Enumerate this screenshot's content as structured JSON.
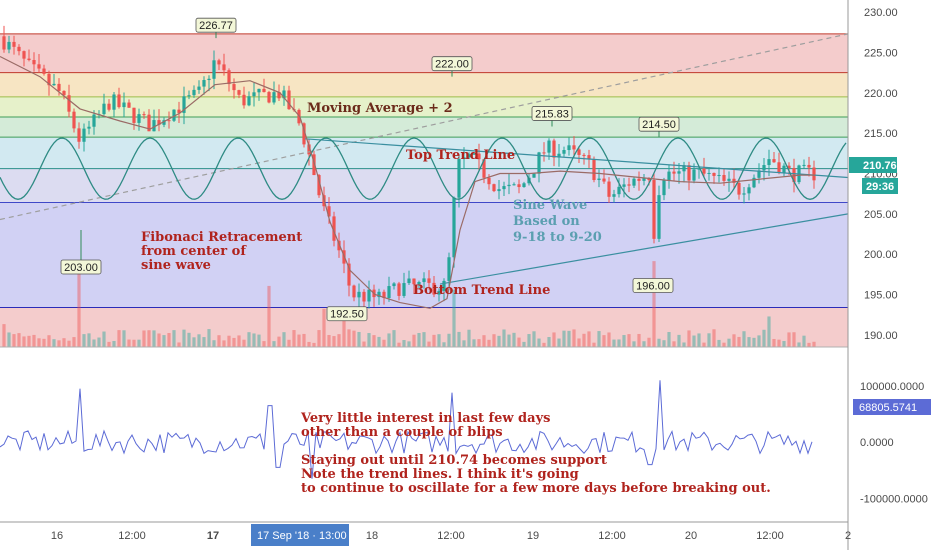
{
  "chart_data": [
    {
      "type": "candlestick",
      "y_ticks": [
        "230.00",
        "225.00",
        "220.00",
        "215.00",
        "210.00",
        "205.00",
        "200.00",
        "195.00",
        "190.00"
      ],
      "ylim": [
        188.5,
        231.5
      ],
      "x_ticks": [
        "16",
        "12:00",
        "17",
        "17 Sep '18 · 13:00",
        "18",
        "12:00",
        "19",
        "12:00",
        "20",
        "12:00",
        "2"
      ],
      "crosshair_time_label": "17 Sep '18 · 13:00",
      "last_price": "210.76",
      "countdown": "29:36",
      "fib_levels": [
        227.3,
        222.5,
        219.5,
        217.0,
        214.5,
        210.6,
        206.4,
        193.4
      ],
      "fib_zone_colors": [
        "#f3c7c7",
        "#f6e2bd",
        "#e3f0c4",
        "#cfe9d4",
        "#cde7f0",
        "#d8d8ef",
        "#ccccf3",
        "#f3c7c7"
      ],
      "price_callouts": [
        {
          "label": "226.77",
          "value": 226.77
        },
        {
          "label": "222.00",
          "value": 222.0
        },
        {
          "label": "215.83",
          "value": 215.83
        },
        {
          "label": "214.50",
          "value": 214.5
        },
        {
          "label": "203.00",
          "value": 203.0
        },
        {
          "label": "192.50",
          "value": 192.5
        },
        {
          "label": "196.00",
          "value": 196.0
        }
      ],
      "annotations": [
        {
          "text": "Moving Average + 2",
          "color": "#6b2a1a"
        },
        {
          "text": "Top Trend Line",
          "color": "#b0231d"
        },
        {
          "text": "Bottom Trend Line",
          "color": "#b0231d"
        },
        {
          "text": "Sine Wave",
          "color": "#5b9fb0"
        },
        {
          "text": "Based on",
          "color": "#5b9fb0"
        },
        {
          "text": "9-18 to 9-20",
          "color": "#5b9fb0"
        },
        {
          "text": "Fibonaci Retracement",
          "color": "#b0231d"
        },
        {
          "text": "from center of",
          "color": "#b0231d"
        },
        {
          "text": "sine wave",
          "color": "#b0231d"
        }
      ],
      "colors": {
        "up": "#26a69a",
        "down": "#ef5350",
        "ma": "#9a6b66",
        "sine": "#2e8b84",
        "trend": "#3a8fa0",
        "dashed": "#9e9e9e"
      }
    },
    {
      "type": "line",
      "y_ticks": [
        "100000.0000",
        "0.0000",
        "-100000.0000"
      ],
      "ylim": [
        -135000,
        155000
      ],
      "last_value": "68805.5741",
      "annotations": [
        "Very little interest in last few days",
        "other than a couple of blips",
        "Staying out until 210.74 becomes support",
        "Note the trend lines.  I think it's going",
        "to continue to oscillate for a few more days before breaking out."
      ],
      "line_color": "#5c6bd6"
    }
  ]
}
